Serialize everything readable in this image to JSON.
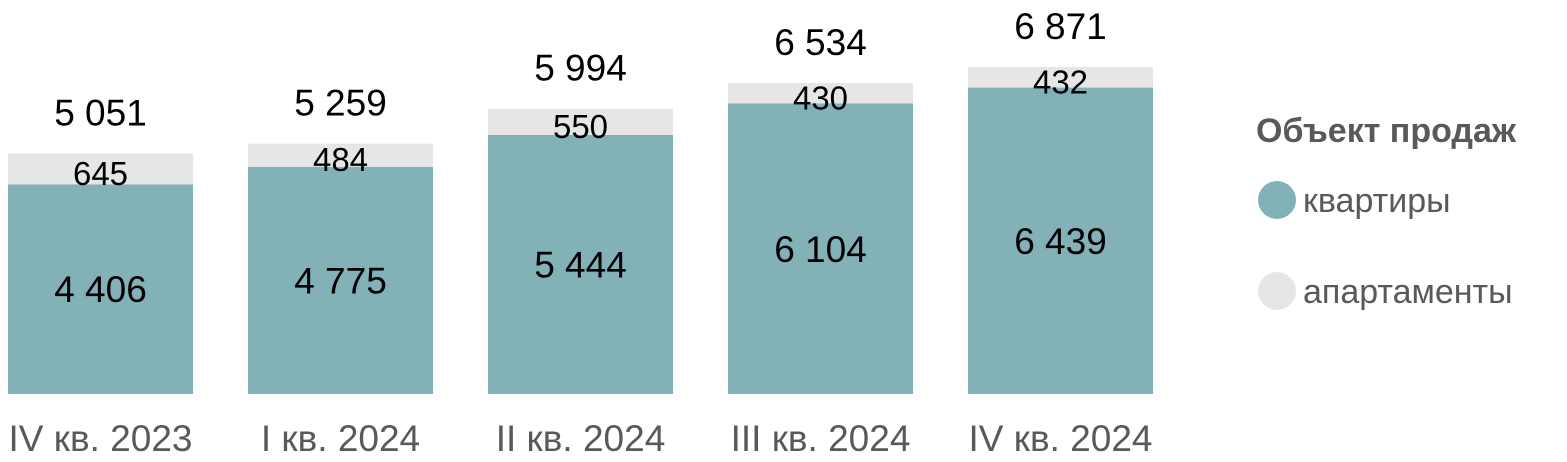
{
  "chart_data": {
    "type": "bar",
    "stacked": true,
    "categories": [
      "IV кв. 2023",
      "I кв. 2024",
      "II кв. 2024",
      "III кв. 2024",
      "IV кв. 2024"
    ],
    "series": [
      {
        "name": "квартиры",
        "values": [
          4406,
          4775,
          5444,
          6104,
          6439
        ],
        "color": "#82b1b8"
      },
      {
        "name": "апартаменты",
        "values": [
          645,
          484,
          550,
          430,
          432
        ],
        "color": "#e6e6e6"
      }
    ],
    "totals": [
      5051,
      5259,
      5994,
      6534,
      6871
    ],
    "value_labels": {
      "series": [
        [
          "4 406",
          "4 775",
          "5 444",
          "6 104",
          "6 439"
        ],
        [
          "645",
          "484",
          "550",
          "430",
          "432"
        ]
      ],
      "totals": [
        "5 051",
        "5 259",
        "5 994",
        "6 534",
        "6 871"
      ]
    },
    "legend": {
      "title": "Объект продаж",
      "position": "right",
      "items": [
        "квартиры",
        "апартаменты"
      ]
    },
    "ylim": [
      0,
      6871
    ],
    "grid": false,
    "title": "",
    "xlabel": "",
    "ylabel": ""
  }
}
